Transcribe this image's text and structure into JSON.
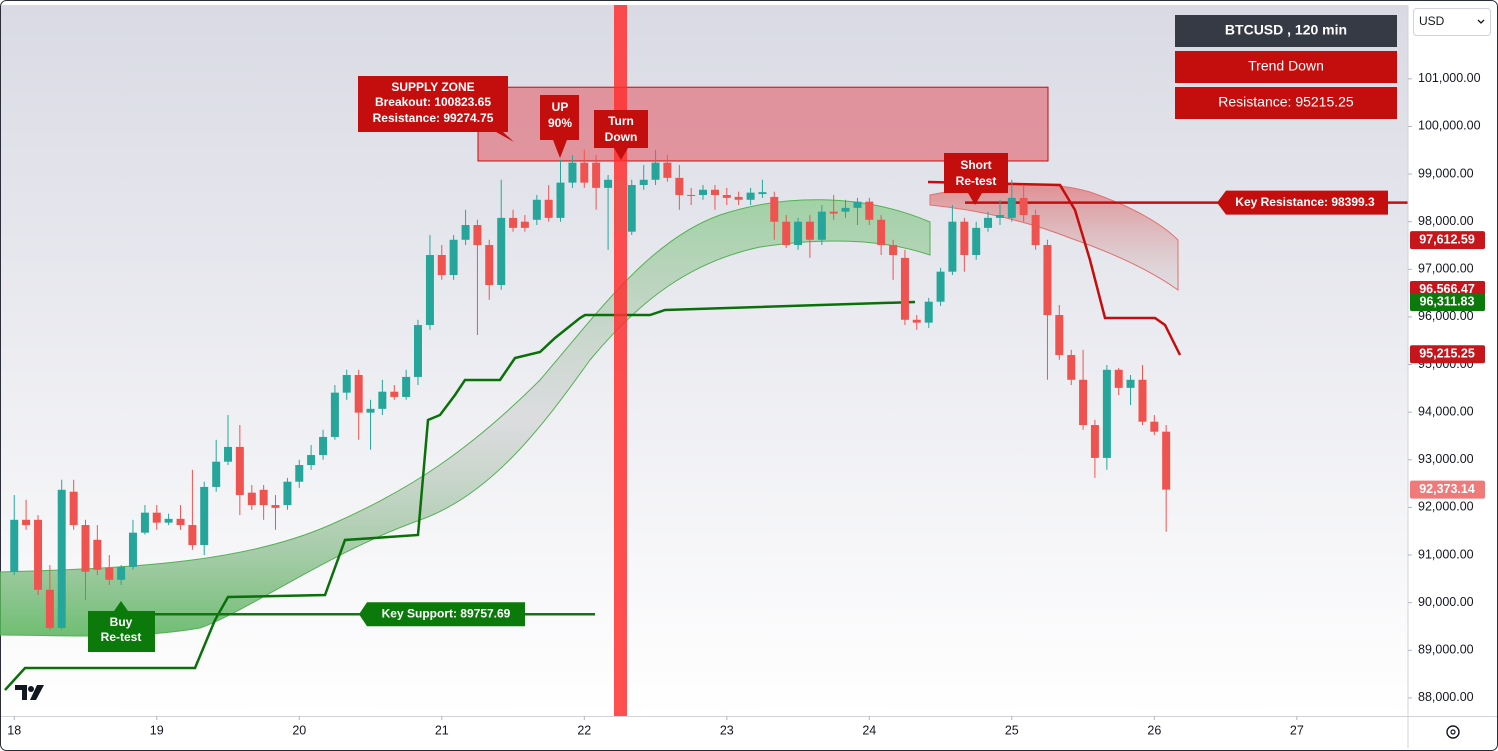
{
  "chart_data": {
    "type": "candlestick",
    "symbol_label": "BTCUSD , 120 min",
    "trend_label": "Trend Down",
    "resistance_label": "Resistance: 95215.25",
    "currency": "USD",
    "up_color": "#26a69a",
    "down_color": "#ef5350",
    "xlim": [
      17.9,
      27.78
    ],
    "xticks": [
      18,
      19,
      20,
      21,
      22,
      23,
      24,
      25,
      26,
      27
    ],
    "ylim": [
      87620,
      102550
    ],
    "yticks": [
      {
        "value": 88000,
        "label": "88,000.00"
      },
      {
        "value": 89000,
        "label": "89,000.00"
      },
      {
        "value": 90000,
        "label": "90,000.00"
      },
      {
        "value": 91000,
        "label": "91,000.00"
      },
      {
        "value": 92000,
        "label": "92,000.00"
      },
      {
        "value": 93000,
        "label": "93,000.00"
      },
      {
        "value": 94000,
        "label": "94,000.00"
      },
      {
        "value": 95000,
        "label": "95,000.00"
      },
      {
        "value": 96000,
        "label": "96,000.00"
      },
      {
        "value": 97000,
        "label": "97,000.00"
      },
      {
        "value": 98000,
        "label": "98,000.00"
      },
      {
        "value": 99000,
        "label": "99,000.00"
      },
      {
        "value": 100000,
        "label": "100,000.00"
      },
      {
        "value": 101000,
        "label": "101,000.00"
      }
    ],
    "x": [
      18,
      18.083,
      18.167,
      18.25,
      18.333,
      18.417,
      18.5,
      18.583,
      18.667,
      18.75,
      18.833,
      18.917,
      19,
      19.083,
      19.167,
      19.25,
      19.333,
      19.417,
      19.5,
      19.583,
      19.667,
      19.75,
      19.833,
      19.917,
      20,
      20.083,
      20.167,
      20.25,
      20.333,
      20.417,
      20.5,
      20.583,
      20.667,
      20.75,
      20.833,
      20.917,
      21,
      21.083,
      21.167,
      21.25,
      21.333,
      21.417,
      21.5,
      21.583,
      21.667,
      21.75,
      21.833,
      21.917,
      22,
      22.083,
      22.167,
      22.25,
      22.333,
      22.417,
      22.5,
      22.583,
      22.667,
      22.75,
      22.833,
      22.917,
      23,
      23.083,
      23.167,
      23.25,
      23.333,
      23.417,
      23.5,
      23.583,
      23.667,
      23.75,
      23.833,
      23.917,
      24,
      24.083,
      24.167,
      24.25,
      24.333,
      24.417,
      24.5,
      24.583,
      24.667,
      24.75,
      24.833,
      24.917,
      25,
      25.083,
      25.167,
      25.25,
      25.333,
      25.417,
      25.5,
      25.583,
      25.667,
      25.75,
      25.833,
      25.917,
      26,
      26.083
    ],
    "open": [
      90650,
      91740,
      91740,
      90270,
      89470,
      92330,
      91630,
      91320,
      90730,
      90480,
      90750,
      91470,
      91890,
      91680,
      91760,
      91630,
      91210,
      92430,
      92960,
      93270,
      92310,
      92370,
      92050,
      92050,
      92540,
      92890,
      93100,
      93480,
      94410,
      94780,
      93990,
      94070,
      94430,
      94320,
      94740,
      95830,
      97300,
      96880,
      97620,
      97930,
      97510,
      96670,
      98080,
      98000,
      98040,
      98460,
      98080,
      98820,
      99240,
      99240,
      98710,
      98880,
      97790,
      98770,
      98880,
      99240,
      98920,
      98560,
      98560,
      98670,
      98560,
      98520,
      98460,
      98580,
      98520,
      98000,
      97510,
      98000,
      97620,
      98210,
      98210,
      98290,
      98420,
      98040,
      97510,
      97240,
      95940,
      95880,
      96320,
      96950,
      98000,
      97300,
      97870,
      98080,
      98080,
      98500,
      98140,
      97510,
      96040,
      95200,
      94680,
      93730,
      93040,
      94890,
      94510,
      94680,
      93800,
      93590
    ],
    "high": [
      92260,
      92160,
      91840,
      90790,
      92580,
      92580,
      91740,
      91630,
      91000,
      90790,
      91740,
      92050,
      92050,
      91870,
      92050,
      92790,
      92540,
      93420,
      93940,
      93730,
      92470,
      92470,
      92260,
      92620,
      93000,
      93310,
      93630,
      94570,
      94890,
      94890,
      94260,
      94680,
      94570,
      94890,
      95940,
      97720,
      97510,
      97720,
      98250,
      98040,
      97620,
      98880,
      98250,
      98140,
      98560,
      98770,
      99300,
      99400,
      99510,
      99400,
      98980,
      98980,
      98880,
      99190,
      99510,
      99400,
      99190,
      98710,
      98770,
      98770,
      98710,
      98630,
      98710,
      98880,
      98630,
      98140,
      98080,
      98140,
      98350,
      98560,
      98460,
      98500,
      98500,
      98140,
      97620,
      97410,
      96040,
      96400,
      97030,
      98350,
      98080,
      98000,
      98210,
      98460,
      98880,
      98770,
      98250,
      97620,
      96250,
      95310,
      95310,
      93840,
      94990,
      94930,
      94780,
      94990,
      93940,
      93730
    ],
    "low": [
      90580,
      91530,
      90160,
      89430,
      89430,
      91530,
      90060,
      90580,
      90370,
      90370,
      90690,
      91430,
      91530,
      91630,
      91530,
      91110,
      91000,
      92330,
      92890,
      91840,
      91950,
      91740,
      91530,
      91950,
      92410,
      92790,
      93000,
      93420,
      94260,
      93420,
      93210,
      93940,
      94260,
      94260,
      94570,
      95730,
      96780,
      96780,
      97510,
      95620,
      96360,
      96570,
      97790,
      97790,
      97930,
      98000,
      98000,
      98710,
      98710,
      98250,
      97410,
      97200,
      97720,
      98670,
      98770,
      98840,
      98250,
      98350,
      98460,
      98250,
      98350,
      98350,
      98350,
      98500,
      97620,
      97450,
      97410,
      97240,
      97510,
      98040,
      98080,
      97930,
      97930,
      97300,
      96780,
      95830,
      95730,
      95770,
      96230,
      96880,
      96950,
      97200,
      97790,
      97930,
      98000,
      98000,
      97410,
      94680,
      95100,
      94570,
      93630,
      92620,
      92790,
      94360,
      94150,
      93730,
      93520,
      91490
    ],
    "close": [
      91740,
      91630,
      90270,
      89470,
      92370,
      91630,
      90650,
      90690,
      90480,
      90750,
      91470,
      91890,
      91680,
      91760,
      91630,
      91210,
      92430,
      92960,
      93270,
      92260,
      92050,
      92050,
      91990,
      92540,
      92890,
      93100,
      93480,
      94410,
      94780,
      93990,
      94070,
      94430,
      94320,
      94740,
      95830,
      97300,
      96880,
      97620,
      97930,
      97510,
      96670,
      98080,
      97870,
      97870,
      98460,
      98080,
      98820,
      99240,
      98820,
      98710,
      98880,
      97790,
      98770,
      98880,
      99240,
      98920,
      98560,
      98540,
      98670,
      98560,
      98500,
      98460,
      98610,
      98620,
      98000,
      97510,
      98000,
      97620,
      98210,
      98170,
      98290,
      98420,
      98040,
      97510,
      97300,
      95940,
      95880,
      96320,
      96950,
      98000,
      97300,
      97870,
      98080,
      98140,
      98500,
      98140,
      97510,
      96040,
      95200,
      94680,
      93730,
      93040,
      94890,
      94510,
      94680,
      93800,
      93590,
      92373.14
    ],
    "supply_zone": {
      "title": "SUPPLY ZONE",
      "breakout_label": "Breakout: 100823.65",
      "resistance_label": "Resistance: 99274.75",
      "top": 100823.65,
      "bottom": 99274.75
    },
    "key_support": {
      "label": "Key Support: 89757.69",
      "value": 89757.69
    },
    "key_resistance": {
      "label": "Key Resistance: 98399.3",
      "value": 98399.3
    },
    "annotations": [
      {
        "lines": [
          "UP",
          "90%"
        ]
      },
      {
        "lines": [
          "Turn",
          "Down"
        ]
      },
      {
        "lines": [
          "Short",
          "Re-test"
        ]
      },
      {
        "lines": [
          "Buy",
          "Re-test"
        ]
      }
    ],
    "price_badges": [
      {
        "value": 97612.59,
        "label": "97,612.59",
        "color": "#c7151c"
      },
      {
        "value": 96566.47,
        "label": "96,566.47",
        "color": "#c7151c"
      },
      {
        "value": 96566.47,
        "label": "96,566.47",
        "color": "#c7151c"
      },
      {
        "value": 96311.83,
        "label": "96,311.83",
        "color": "#0b7a0b"
      },
      {
        "value": 95215.25,
        "label": "95,215.25",
        "color": "#c7151c"
      },
      {
        "value": 92373.14,
        "label": "92,373.14",
        "color": "#f07a7a"
      }
    ]
  }
}
